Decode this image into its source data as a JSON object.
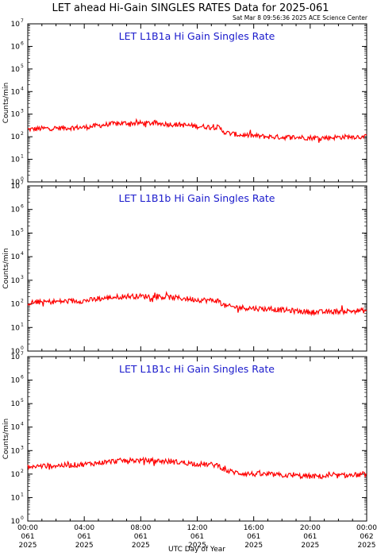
{
  "title": "LET ahead Hi-Gain SINGLES RATES Data for 2025-061",
  "subtitle": "Sat Mar  8 09:56:36 2025 ACE Science Center",
  "colors": {
    "series": "#ff0000",
    "panel_label": "#1a1acc",
    "axes": "#000000"
  },
  "chart_data": [
    {
      "type": "line",
      "title": "LET L1B1a Hi Gain Singles Rate",
      "ylabel": "Counts/min",
      "xlabel": "",
      "yscale": "log",
      "ylim": [
        1,
        10000000
      ],
      "xlim": [
        0,
        24
      ],
      "grid": false,
      "series": [
        {
          "color": "#ff0000",
          "x": [
            0,
            1,
            2,
            3,
            4,
            5,
            6,
            7,
            8,
            9,
            10,
            11,
            12,
            13,
            13.5,
            14,
            15,
            16,
            17,
            18,
            19,
            20,
            21,
            22,
            23,
            24
          ],
          "y": [
            210,
            230,
            240,
            250,
            260,
            310,
            370,
            400,
            400,
            390,
            360,
            330,
            290,
            270,
            260,
            150,
            120,
            110,
            100,
            95,
            95,
            90,
            90,
            95,
            100,
            100
          ]
        }
      ]
    },
    {
      "type": "line",
      "title": "LET L1B1b Hi Gain Singles Rate",
      "ylabel": "Counts/min",
      "xlabel": "",
      "yscale": "log",
      "ylim": [
        1,
        10000000
      ],
      "xlim": [
        0,
        24
      ],
      "grid": false,
      "series": [
        {
          "color": "#ff0000",
          "x": [
            0,
            1,
            2,
            3,
            4,
            5,
            6,
            7,
            8,
            9,
            10,
            11,
            12,
            13,
            13.5,
            14,
            15,
            16,
            17,
            18,
            19,
            20,
            21,
            22,
            23,
            24
          ],
          "y": [
            110,
            120,
            125,
            130,
            135,
            160,
            190,
            210,
            210,
            205,
            190,
            170,
            150,
            140,
            135,
            80,
            70,
            65,
            60,
            55,
            50,
            45,
            45,
            48,
            50,
            52
          ]
        }
      ]
    },
    {
      "type": "line",
      "title": "LET L1B1c Hi Gain Singles Rate",
      "ylabel": "Counts/min",
      "xlabel": "UTC Day of Year",
      "yscale": "log",
      "ylim": [
        1,
        10000000
      ],
      "xlim": [
        0,
        24
      ],
      "grid": false,
      "x_ticks": [
        {
          "time": "00:00",
          "doy": "061",
          "year": "2025"
        },
        {
          "time": "04:00",
          "doy": "061",
          "year": "2025"
        },
        {
          "time": "08:00",
          "doy": "061",
          "year": "2025"
        },
        {
          "time": "12:00",
          "doy": "061",
          "year": "2025"
        },
        {
          "time": "16:00",
          "doy": "061",
          "year": "2025"
        },
        {
          "time": "20:00",
          "doy": "061",
          "year": "2025"
        },
        {
          "time": "00:00",
          "doy": "062",
          "year": "2025"
        }
      ],
      "series": [
        {
          "color": "#ff0000",
          "x": [
            0,
            1,
            2,
            3,
            4,
            5,
            6,
            7,
            8,
            9,
            10,
            11,
            12,
            13,
            13.5,
            14,
            15,
            16,
            17,
            18,
            19,
            20,
            21,
            22,
            23,
            24
          ],
          "y": [
            200,
            220,
            230,
            240,
            260,
            300,
            350,
            380,
            380,
            370,
            340,
            310,
            270,
            250,
            240,
            140,
            110,
            100,
            95,
            90,
            85,
            80,
            80,
            85,
            90,
            95
          ]
        }
      ]
    }
  ],
  "y_ticks": [
    {
      "base": "10",
      "exp": "0",
      "value": 1
    },
    {
      "base": "10",
      "exp": "1",
      "value": 10
    },
    {
      "base": "10",
      "exp": "2",
      "value": 100
    },
    {
      "base": "10",
      "exp": "3",
      "value": 1000
    },
    {
      "base": "10",
      "exp": "4",
      "value": 10000
    },
    {
      "base": "10",
      "exp": "5",
      "value": 100000
    },
    {
      "base": "10",
      "exp": "6",
      "value": 1000000
    },
    {
      "base": "10",
      "exp": "7",
      "value": 10000000
    }
  ]
}
